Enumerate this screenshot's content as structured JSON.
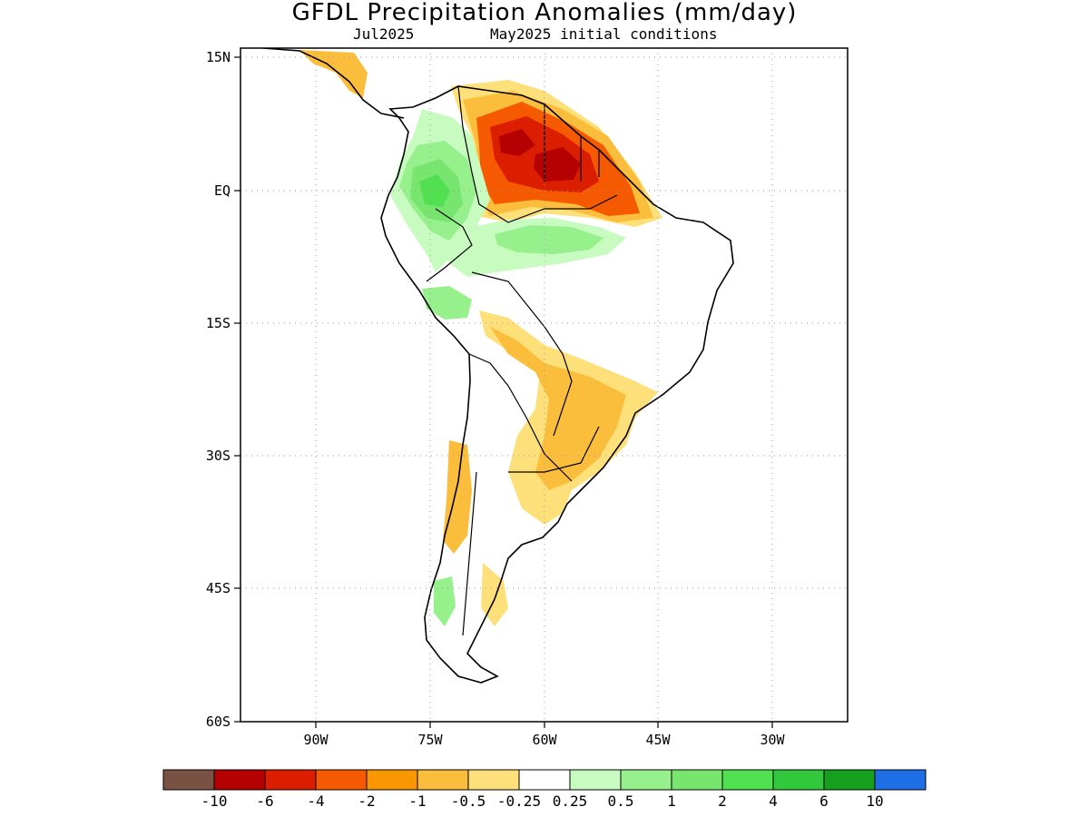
{
  "title": "GFDL Precipitation Anomalies (mm/day)",
  "subtitle_month": "Jul2025",
  "subtitle_init": "May2025 initial conditions",
  "lat_labels": [
    "15N",
    "EQ",
    "15S",
    "30S",
    "45S",
    "60S"
  ],
  "lon_labels": [
    "90W",
    "75W",
    "60W",
    "45W",
    "30W"
  ],
  "map": {
    "region": "South America",
    "lon_range": [
      -100,
      -20
    ],
    "lat_range": [
      -60,
      15
    ],
    "grid": "dotted"
  },
  "colorbar": {
    "colors": [
      "#7a5244",
      "#b40000",
      "#dc1e00",
      "#f55a00",
      "#fa9600",
      "#fbbd3c",
      "#fde07a",
      "#ffffff",
      "#c8fbc0",
      "#96f08c",
      "#78e66e",
      "#50e050",
      "#32c83c",
      "#14a01e",
      "#1e6ee6"
    ],
    "tick_labels": [
      "-10",
      "-6",
      "-4",
      "-2",
      "-1",
      "-0.5",
      "-0.25",
      "0.25",
      "0.5",
      "1",
      "2",
      "4",
      "6",
      "10"
    ]
  },
  "anomaly_regions": [
    {
      "label": "Northern South America (Venezuela / Guianas / N Brazil)",
      "sign": "negative",
      "peak": "-6"
    },
    {
      "label": "Colombia / Ecuador / W Amazon",
      "sign": "positive",
      "peak": "2"
    },
    {
      "label": "Central Amazon belt",
      "sign": "positive",
      "peak": "1"
    },
    {
      "label": "Paraguay / S Brazil / NE Argentina",
      "sign": "negative",
      "peak": "-1"
    },
    {
      "label": "Central Chile",
      "sign": "negative",
      "peak": "-1"
    }
  ]
}
